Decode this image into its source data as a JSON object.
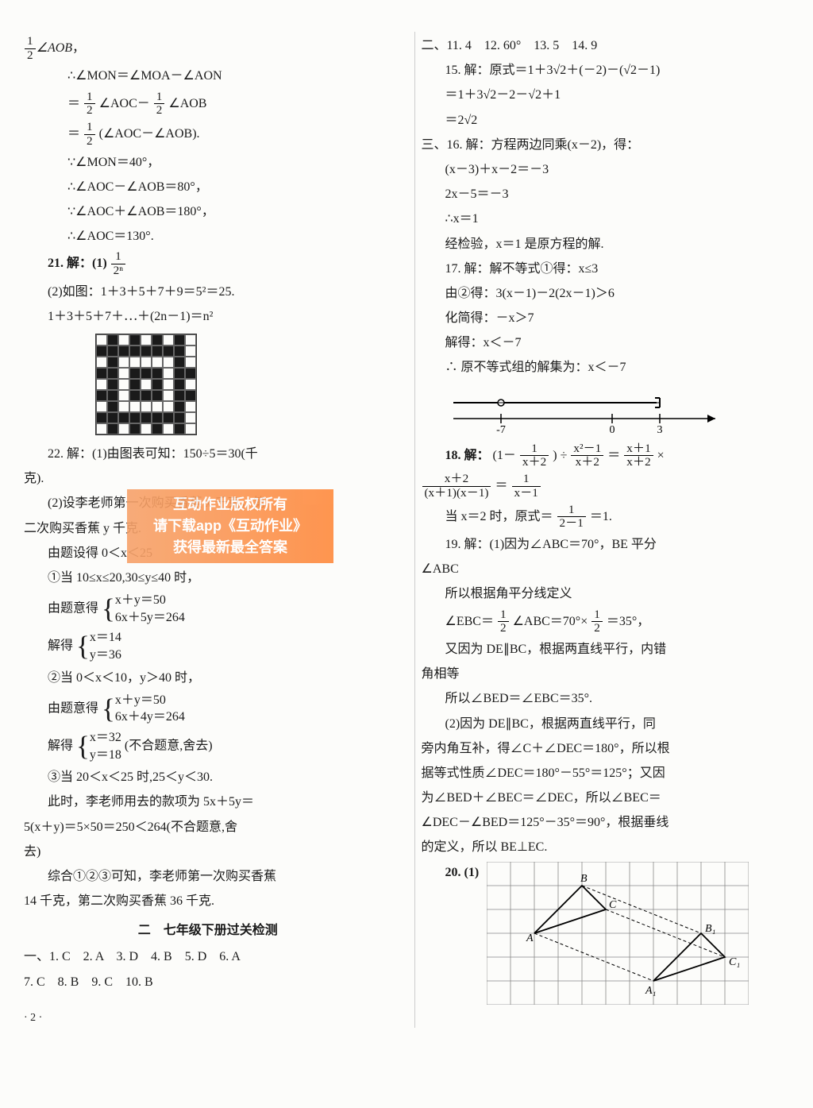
{
  "left_col": {
    "l0": "½∠AOB，",
    "l1": "∴∠MON＝∠MOA－∠AON",
    "l2a": "＝",
    "l2b": "∠AOC－",
    "l2c": "∠AOB",
    "l3a": "＝",
    "l3b": "(∠AOC－∠AOB).",
    "l4": "∵∠MON＝40°，",
    "l5": "∴∠AOC－∠AOB＝80°，",
    "l6": "∵∠AOC＋∠AOB＝180°，",
    "l7": "∴∠AOC＝130°.",
    "q21_head": "21. 解：(1)",
    "q21_2": "(2)如图：1＋3＋5＋7＋9＝5²＝25.",
    "q21_3": "1＋3＋5＋7＋⋯＋(2n－1)＝n²",
    "q22_head": "22. 解：(1)由图表可知：150÷5＝30(千",
    "q22_head2": "克).",
    "q22_2": "(2)设李老师第一次购买香蕉 x 千克，第",
    "q22_2b": "二次购买香蕉 y 千克.",
    "q22_cond": "由题设得 0＜x＜25",
    "case1": "①当 10≤x≤20,30≤y≤40 时，",
    "case1_sys_label": "由题意得",
    "case1_eq1": "x＋y＝50",
    "case1_eq2": "6x＋5y＝264",
    "case1_sol_label": "解得",
    "case1_sol1": "x＝14",
    "case1_sol2": "y＝36",
    "case2": "②当 0＜x＜10，y＞40 时，",
    "case2_sys_label": "由题意得",
    "case2_eq1": "x＋y＝50",
    "case2_eq2": "6x＋4y＝264",
    "case2_sol_label": "解得",
    "case2_sol1": "x＝32",
    "case2_sol2": "y＝18",
    "case2_reject": "(不合题意,舍去)",
    "case3": "③当 20＜x＜25 时,25＜y＜30.",
    "case3_b": "此时，李老师用去的款项为 5x＋5y＝",
    "case3_c": "5(x＋y)＝5×50＝250＜264(不合题意,舍",
    "case3_d": "去)",
    "conclusion": "综合①②③可知，李老师第一次购买香蕉",
    "conclusion2": "14 千克，第二次购买香蕉 36 千克.",
    "section2_title": "二　七年级下册过关检测",
    "mc1": "一、1. C　2. A　3. D　4. B　5. D　6. A",
    "mc2": "7. C　8. B　9. C　10. B",
    "pagenum": "· 2 ·",
    "frac_half_n": "1",
    "frac_half_d": "2",
    "frac_2n_n": "1",
    "frac_2n_d": "2ⁿ"
  },
  "right_col": {
    "fill": "二、11. 4　12. 60°　13. 5　14. 9",
    "q15_1": "15. 解：原式＝1＋3√2＋(－2)－(√2－1)",
    "q15_2": "＝1＋3√2－2－√2＋1",
    "q15_3": "＝2√2",
    "q16_1": "三、16. 解：方程两边同乘(x－2)，得：",
    "q16_2": "(x－3)＋x－2＝－3",
    "q16_3": "2x－5＝－3",
    "q16_4": "∴x＝1",
    "q16_5": "经检验，x＝1 是原方程的解.",
    "q17_1": "17. 解：解不等式①得：x≤3",
    "q17_2": "由②得：3(x－1)－2(2x－1)＞6",
    "q17_3": "化简得：－x＞7",
    "q17_4": "解得：x＜－7",
    "q17_5": "∴ 原不等式组的解集为：x＜－7",
    "q18_head": "18. 解：",
    "q18_f1_lhs_n": "1",
    "q18_f1_lhs_d": "x＋2",
    "q18_f1_mid_n": "x²－1",
    "q18_f1_mid_d": "x＋2",
    "q18_f1_rhs_n": "x＋1",
    "q18_f1_rhs_d": "x＋2",
    "q18_line2_l_n": "x＋2",
    "q18_line2_l_d": "(x＋1)(x－1)",
    "q18_line2_r_n": "1",
    "q18_line2_r_d": "x－1",
    "q18_line3a": "当 x＝2 时，原式＝",
    "q18_line3_n": "1",
    "q18_line3_d": "2－1",
    "q18_line3b": "＝1.",
    "q19_1": "19. 解：(1)因为∠ABC＝70°，BE 平分",
    "q19_1b": "∠ABC",
    "q19_2": "所以根据角平分线定义",
    "q19_3a": "∠EBC＝",
    "q19_3b": "∠ABC＝70°×",
    "q19_3c": "＝35°，",
    "q19_4": "又因为 DE∥BC，根据两直线平行，内错",
    "q19_4b": "角相等",
    "q19_5": "所以∠BED＝∠EBC＝35°.",
    "q19_6": "(2)因为 DE∥BC，根据两直线平行，同",
    "q19_7": "旁内角互补，得∠C＋∠DEC＝180°，所以根",
    "q19_8": "据等式性质∠DEC＝180°－55°＝125°；又因",
    "q19_9": "为∠BED＋∠BEC＝∠DEC，所以∠BEC＝",
    "q19_10": "∠DEC－∠BED＝125°－35°＝90°，根据垂线",
    "q19_11": "的定义，所以 BE⊥EC.",
    "q20_head": "20. (1)"
  },
  "watermark": {
    "l1": "互动作业版权所有",
    "l2": "请下载app《互动作业》",
    "l3": "获得最新最全答案"
  },
  "numberline": {
    "ticks": [
      -7,
      0,
      3
    ]
  },
  "grid20": {
    "labels": {
      "A": "A",
      "B": "B",
      "C": "C",
      "A1": "A₁",
      "B1": "B₁",
      "C1": "C₁"
    }
  },
  "pixel_grid": {
    "rows": [
      [
        0,
        1,
        0,
        1,
        0,
        1,
        0,
        1,
        0
      ],
      [
        1,
        1,
        1,
        1,
        1,
        1,
        1,
        1,
        0
      ],
      [
        0,
        1,
        0,
        0,
        0,
        0,
        0,
        1,
        0
      ],
      [
        1,
        1,
        0,
        1,
        1,
        1,
        0,
        1,
        1
      ],
      [
        0,
        1,
        0,
        1,
        0,
        1,
        0,
        1,
        0
      ],
      [
        1,
        1,
        0,
        1,
        1,
        1,
        0,
        1,
        1
      ],
      [
        0,
        1,
        0,
        0,
        0,
        0,
        0,
        1,
        0
      ],
      [
        1,
        1,
        1,
        1,
        1,
        1,
        1,
        1,
        0
      ],
      [
        0,
        1,
        0,
        1,
        0,
        1,
        0,
        1,
        0
      ]
    ]
  },
  "colors": {
    "text": "#1a1a1a",
    "bg": "#fcfcfa",
    "watermark_from": "#f7a36b",
    "watermark_to": "#ff8a3d"
  }
}
